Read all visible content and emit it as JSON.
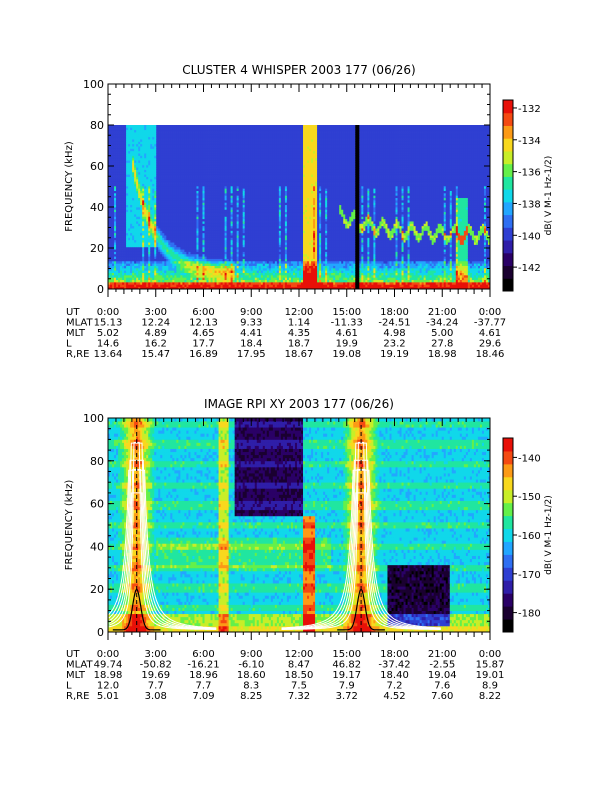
{
  "chart_data": [
    {
      "type": "heatmap",
      "title": "CLUSTER 4 WHISPER 2003 177 (06/26)",
      "ylabel": "FREQUENCY (kHz)",
      "ylim": [
        0,
        100
      ],
      "y_ticks": [
        "0",
        "20",
        "40",
        "60",
        "80",
        "100"
      ],
      "data_max_khz": 80,
      "colorbar": {
        "label": "dB( V M-1 Hz-1/2)",
        "range": [
          -143.5,
          -131.5
        ],
        "ticks": [
          "-132",
          "-134",
          "-136",
          "-138",
          "-140",
          "-142"
        ]
      },
      "x_label_rows": [
        {
          "name": "UT",
          "values": [
            "0:00",
            "3:00",
            "6:00",
            "9:00",
            "12:00",
            "15:00",
            "18:00",
            "21:00",
            "0:00"
          ]
        },
        {
          "name": "MLAT",
          "values": [
            "15.13",
            "12.24",
            "12.13",
            "9.33",
            "1.14",
            "-11.33",
            "-24.51",
            "-34.24",
            "-37.77"
          ]
        },
        {
          "name": "MLT",
          "values": [
            "5.02",
            "4.89",
            "4.65",
            "4.41",
            "4.35",
            "4.61",
            "4.98",
            "5.00",
            "4.61"
          ]
        },
        {
          "name": "L",
          "values": [
            "14.6",
            "16.2",
            "17.7",
            "18.4",
            "18.7",
            "19.9",
            "23.2",
            "27.8",
            "29.6"
          ]
        },
        {
          "name": "R,RE",
          "values": [
            "13.64",
            "15.47",
            "16.89",
            "17.95",
            "18.67",
            "19.08",
            "19.19",
            "18.98",
            "18.46"
          ]
        }
      ]
    },
    {
      "type": "heatmap",
      "title": "IMAGE RPI XY 2003 177 (06/26)",
      "ylabel": "FREQUENCY (kHz)",
      "ylim": [
        0,
        100
      ],
      "y_ticks": [
        "0",
        "20",
        "40",
        "60",
        "80",
        "100"
      ],
      "colorbar": {
        "label": "dB( V M-1 Hz-1/2)",
        "range": [
          -185,
          -135
        ],
        "ticks": [
          "-140",
          "-150",
          "-160",
          "-170",
          "-180"
        ]
      },
      "x_label_rows": [
        {
          "name": "UT",
          "values": [
            "0:00",
            "3:00",
            "6:00",
            "9:00",
            "12:00",
            "15:00",
            "18:00",
            "21:00",
            "0:00"
          ]
        },
        {
          "name": "MLAT",
          "values": [
            "49.74",
            "-50.82",
            "-16.21",
            "-6.10",
            "8.47",
            "46.82",
            "-37.42",
            "-2.55",
            "15.87"
          ]
        },
        {
          "name": "MLT",
          "values": [
            "18.98",
            "19.69",
            "18.96",
            "18.60",
            "18.50",
            "19.17",
            "18.40",
            "19.04",
            "19.01"
          ]
        },
        {
          "name": "L",
          "values": [
            "12.0",
            "7.7",
            "7.7",
            "8.3",
            "7.5",
            "7.9",
            "7.2",
            "7.6",
            "8.9"
          ]
        },
        {
          "name": "R,RE",
          "values": [
            "5.01",
            "3.08",
            "7.09",
            "8.25",
            "7.32",
            "3.72",
            "4.52",
            "7.60",
            "8.22"
          ]
        }
      ]
    }
  ],
  "palette": [
    "#000000",
    "#1a0030",
    "#2a0066",
    "#2f1ea8",
    "#2f3fd2",
    "#2f6ff2",
    "#22a6ff",
    "#10d8ea",
    "#20e6a0",
    "#64f04a",
    "#c8ee28",
    "#f8d81e",
    "#fc9a16",
    "#f44a12",
    "#e81008"
  ],
  "curve_colors": {
    "overlay": "#ffffff",
    "fp": "#000000"
  }
}
